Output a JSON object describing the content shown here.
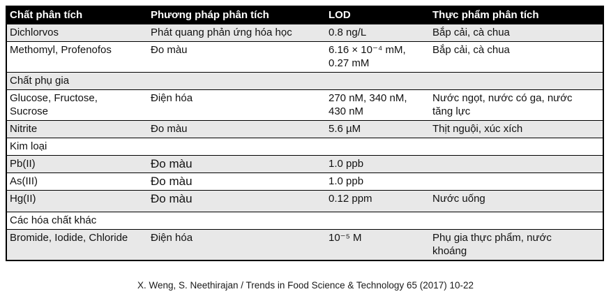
{
  "table": {
    "columns": [
      "Chất phân tích",
      "Phương pháp phân tích",
      "LOD",
      "Thực phẩm phân tích"
    ],
    "rows": [
      {
        "type": "data",
        "analyte": "Dichlorvos",
        "method": "Phát quang phản ứng hóa học",
        "lod": "0.8 ng/L",
        "food": "Bắp cải, cà chua"
      },
      {
        "type": "data",
        "analyte": "Methomyl, Profenofos",
        "method": "Đo màu",
        "lod": "6.16 × 10⁻⁴ mM,\n0.27 mM",
        "food": "Bắp cải, cà chua"
      },
      {
        "type": "section",
        "label": "Chất phụ gia"
      },
      {
        "type": "data",
        "analyte": "Glucose, Fructose,\nSucrose",
        "method": "Điện hóa",
        "lod": "270 nM, 340 nM,\n430 nM",
        "food": "Nước ngọt, nước có ga, nước\ntăng lực"
      },
      {
        "type": "data",
        "analyte": "Nitrite",
        "method": "Đo màu",
        "lod": "5.6 µM",
        "food": "Thịt nguội, xúc xích"
      },
      {
        "type": "section",
        "label": "Kim loại"
      },
      {
        "type": "data",
        "analyte": "Pb(II)",
        "method": "Đo màu",
        "lod": "1.0 ppb",
        "food": "",
        "large_method": true
      },
      {
        "type": "data",
        "analyte": "As(III)",
        "method": "Đo màu",
        "lod": "1.0 ppb",
        "food": "",
        "large_method": true
      },
      {
        "type": "data",
        "analyte": "Hg(II)",
        "method": "Đo màu",
        "lod": "0.12 ppm",
        "food": "Nước uống",
        "large_method": true,
        "roomy": true
      },
      {
        "type": "section",
        "label": "Các hóa chất khác"
      },
      {
        "type": "data",
        "analyte": "Bromide, Iodide, Chloride",
        "method": "Điện hóa",
        "lod": "10⁻⁵ M",
        "food": "Phụ gia thực phẩm, nước\nkhoáng"
      }
    ]
  },
  "caption": "X. Weng, S. Neethirajan / Trends in Food Science & Technology 65 (2017) 10-22"
}
